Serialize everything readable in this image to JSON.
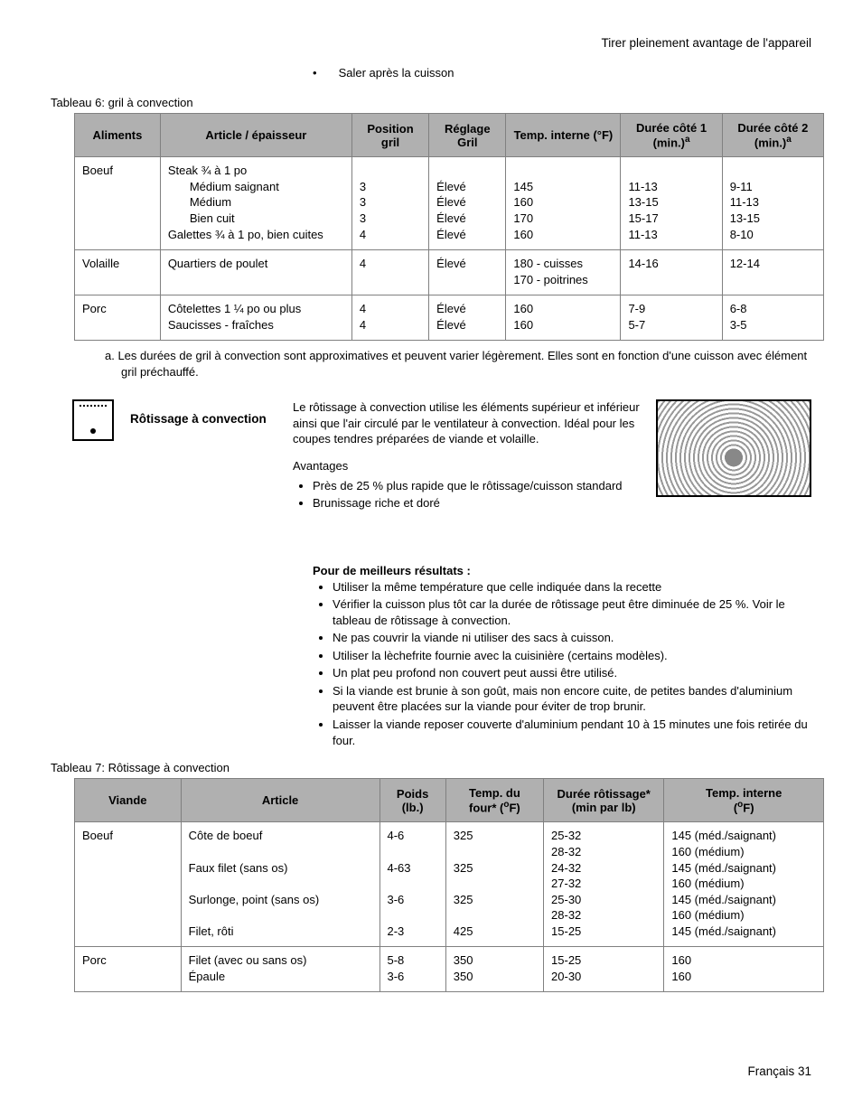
{
  "header_right": "Tirer pleinement avantage de l'appareil",
  "top_bullet": "Saler après la cuisson",
  "table6": {
    "caption": "Tableau 6: gril à convection",
    "columns": [
      "Aliments",
      "Article / épaisseur",
      "Position gril",
      "Réglage Gril",
      "Temp. interne (°F)",
      "Durée côté 1 (min.)ᵃ",
      "Durée côté 2 (min.)ᵃ"
    ],
    "rows": [
      {
        "aliment": "Boeuf",
        "article_main": "Steak  ¾ à 1 po",
        "sub": [
          "Médium saignant",
          "Médium",
          "Bien cuit"
        ],
        "extra": "Galettes ¾ à 1 po, bien cuites",
        "pos": [
          "3",
          "3",
          "3",
          "4"
        ],
        "reglage": [
          "Élevé",
          "Élevé",
          "Élevé",
          "Élevé"
        ],
        "temp": [
          "145",
          "160",
          "170",
          "160"
        ],
        "d1": [
          "11-13",
          "13-15",
          "15-17",
          "11-13"
        ],
        "d2": [
          "9-11",
          "11-13",
          "13-15",
          "8-10"
        ]
      },
      {
        "aliment": "Volaille",
        "article_main": "Quartiers de poulet",
        "pos": [
          "4"
        ],
        "reglage": [
          "Élevé"
        ],
        "temp": [
          "180 - cuisses",
          "170 - poitrines"
        ],
        "d1": [
          "14-16"
        ],
        "d2": [
          "12-14"
        ]
      },
      {
        "aliment": "Porc",
        "article_lines": [
          "Côtelettes 1 ¼ po ou plus",
          "Saucisses - fraîches"
        ],
        "pos": [
          "4",
          "4"
        ],
        "reglage": [
          "Élevé",
          "Élevé"
        ],
        "temp": [
          "160",
          "160"
        ],
        "d1": [
          "7-9",
          "5-7"
        ],
        "d2": [
          "6-8",
          "3-5"
        ]
      }
    ],
    "footnote": "a. Les durées de gril à convection sont approximatives et peuvent varier légèrement. Elles sont en fonction d'une cuisson avec élément gril préchauffé."
  },
  "section": {
    "title": "Rôtissage à convection",
    "intro": "Le rôtissage à convection utilise les éléments supérieur et inférieur ainsi que l'air circulé par le ventilateur à convection. Idéal pour les coupes tendres préparées de viande et volaille.",
    "advantages_label": "Avantages",
    "advantages": [
      "Près de 25 % plus rapide que le rôtissage/cuisson standard",
      "Brunissage riche et doré"
    ]
  },
  "results": {
    "title": "Pour de meilleurs résultats :",
    "items": [
      "Utiliser la même température que celle indiquée dans la recette",
      "Vérifier la cuisson plus tôt car la durée de rôtissage peut être diminuée de 25 %. Voir le tableau de rôtissage à convection.",
      "Ne pas couvrir la viande ni utiliser des sacs à cuisson.",
      "Utiliser la lèchefrite fournie avec la cuisinière (certains modèles).",
      "Un plat peu profond non couvert peut aussi être utilisé.",
      "Si la viande est brunie à son goût, mais non encore cuite, de petites bandes d'aluminium peuvent être placées sur la viande pour éviter de trop brunir.",
      "Laisser la viande reposer couverte d'aluminium pendant 10 à 15 minutes une fois retirée du four."
    ]
  },
  "table7": {
    "caption": "Tableau 7: Rôtissage à convection",
    "columns": [
      "Viande",
      "Article",
      "Poids (lb.)",
      "Temp. du four* (°F)",
      "Durée rôtissage* (min par lb)",
      "Temp. interne (°F)"
    ],
    "rows": [
      {
        "viande": "Boeuf",
        "articles": [
          "Côte de boeuf",
          "",
          "Faux filet (sans os)",
          "",
          "Surlonge, point (sans os)",
          "",
          "Filet, rôti"
        ],
        "poids": [
          "4-6",
          "",
          "4-63",
          "",
          "3-6",
          "",
          "2-3"
        ],
        "four": [
          "325",
          "",
          "325",
          "",
          "325",
          "",
          "425"
        ],
        "duree": [
          "25-32",
          "28-32",
          "24-32",
          "27-32",
          "25-30",
          "28-32",
          "15-25"
        ],
        "interne": [
          "145 (méd./saignant)",
          "160 (médium)",
          "145 (méd./saignant)",
          "160 (médium)",
          "145 (méd./saignant)",
          "160 (médium)",
          "145 (méd./saignant)"
        ]
      },
      {
        "viande": "Porc",
        "articles": [
          "Filet (avec ou sans os)",
          "Épaule"
        ],
        "poids": [
          "5-8",
          "3-6"
        ],
        "four": [
          "350",
          "350"
        ],
        "duree": [
          "15-25",
          "20-30"
        ],
        "interne": [
          "160",
          "160"
        ]
      }
    ]
  },
  "footer": "Français 31"
}
